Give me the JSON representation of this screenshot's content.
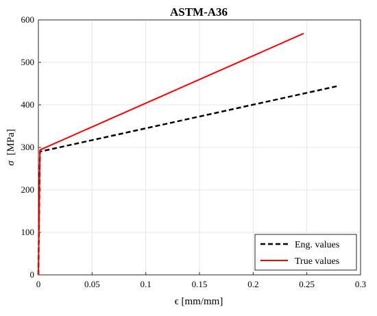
{
  "chart_data": {
    "type": "line",
    "title": "ASTM-A36",
    "xlabel": "ϵ [mm/mm]",
    "ylabel_symbol": "σ",
    "ylabel_unit": "[MPa]",
    "xlim": [
      0,
      0.3
    ],
    "ylim": [
      0,
      600
    ],
    "x_ticks": [
      0,
      0.05,
      0.1,
      0.15,
      0.2,
      0.25,
      0.3
    ],
    "x_tick_labels": [
      "0",
      "0.05",
      "0.1",
      "0.15",
      "0.2",
      "0.25",
      "0.3"
    ],
    "y_ticks": [
      0,
      100,
      200,
      300,
      400,
      500,
      600
    ],
    "y_tick_labels": [
      "0",
      "100",
      "200",
      "300",
      "400",
      "500",
      "600"
    ],
    "grid": true,
    "legend_position": "bottom-right",
    "series": [
      {
        "name": "Eng. values",
        "color": "#000000",
        "dash": "dashed",
        "x": [
          0,
          0.0012,
          0.0015,
          0.28
        ],
        "y": [
          0,
          250,
          290,
          445
        ]
      },
      {
        "name": "True values",
        "color": "#ff0000",
        "dash": "solid",
        "x": [
          0,
          0.0012,
          0.0015,
          0.247
        ],
        "y": [
          0,
          250,
          294,
          568
        ]
      }
    ]
  }
}
